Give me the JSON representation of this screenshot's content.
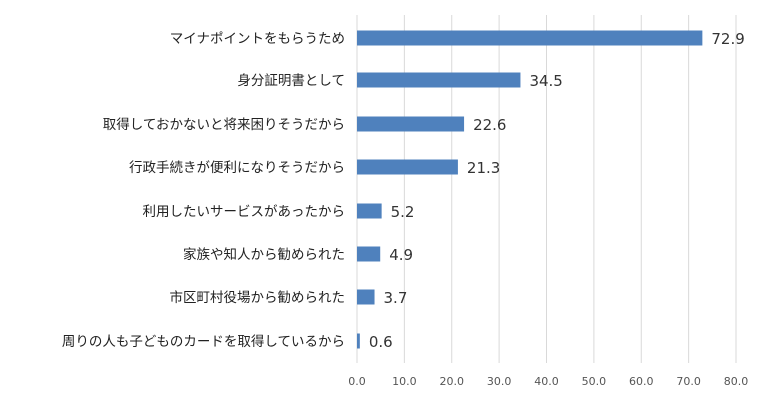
{
  "chart_data": {
    "type": "bar",
    "orientation": "horizontal",
    "categories": [
      "マイナポイントをもらうため",
      "身分証明書として",
      "取得しておかないと将来困りそうだから",
      "行政手続きが便利になりそうだから",
      "利用したいサービスがあったから",
      "家族や知人から勧められた",
      "市区町村役場から勧められた",
      "周りの人も子どものカードを取得しているから"
    ],
    "values": [
      72.9,
      34.5,
      22.6,
      21.3,
      5.2,
      4.9,
      3.7,
      0.6
    ],
    "value_labels": [
      "72.9",
      "34.5",
      "22.6",
      "21.3",
      "5.2",
      "4.9",
      "3.7",
      "0.6"
    ],
    "xlim": [
      0,
      80
    ],
    "ticks": [
      "0.0",
      "10.0",
      "20.0",
      "30.0",
      "40.0",
      "50.0",
      "60.0",
      "70.0",
      "80.0"
    ],
    "grid": true,
    "bar_color": "#4f81bd",
    "grid_color": "#d9d9d9"
  }
}
